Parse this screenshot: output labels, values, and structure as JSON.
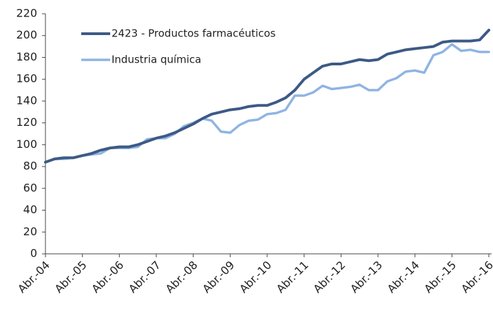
{
  "chart_data": {
    "type": "line",
    "categories": [
      "Abr.-04",
      null,
      null,
      null,
      "Abr.-05",
      null,
      null,
      null,
      "Abr.-06",
      null,
      null,
      null,
      "Abr.-07",
      null,
      null,
      null,
      "Abr.-08",
      null,
      null,
      null,
      "Abr.-09",
      null,
      null,
      null,
      "Abr.-10",
      null,
      null,
      null,
      "Abr.-11",
      null,
      null,
      null,
      "Abr.-12",
      null,
      null,
      null,
      "Abr.-13",
      null,
      null,
      null,
      "Abr.-14",
      null,
      null,
      null,
      "Abr.-15",
      null,
      null,
      null,
      "Abr.-16"
    ],
    "series": [
      {
        "name": "2423 - Productos farmacéuticos",
        "color": "#3c5a85",
        "values": [
          84,
          87,
          88,
          88,
          90,
          92,
          95,
          97,
          98,
          98,
          100,
          103,
          106,
          108,
          111,
          115,
          119,
          124,
          128,
          130,
          132,
          133,
          135,
          136,
          136,
          139,
          143,
          150,
          160,
          166,
          172,
          174,
          174,
          176,
          178,
          177,
          178,
          183,
          185,
          187,
          188,
          189,
          190,
          194,
          195,
          195,
          195,
          196,
          205
        ]
      },
      {
        "name": "Industria química",
        "color": "#8fb4e3",
        "values": [
          84,
          87,
          87,
          88,
          90,
          91,
          92,
          97,
          97,
          97,
          98,
          105,
          106,
          106,
          110,
          117,
          120,
          124,
          122,
          112,
          111,
          118,
          122,
          123,
          128,
          129,
          132,
          145,
          145,
          148,
          154,
          151,
          152,
          153,
          155,
          150,
          150,
          158,
          161,
          167,
          168,
          166,
          182,
          185,
          192,
          186,
          187,
          185,
          185
        ]
      }
    ],
    "ylim": [
      0,
      220
    ],
    "yticks": [
      0,
      20,
      40,
      60,
      80,
      100,
      120,
      140,
      160,
      180,
      200,
      220
    ],
    "grid": false,
    "legend": "upper left"
  }
}
